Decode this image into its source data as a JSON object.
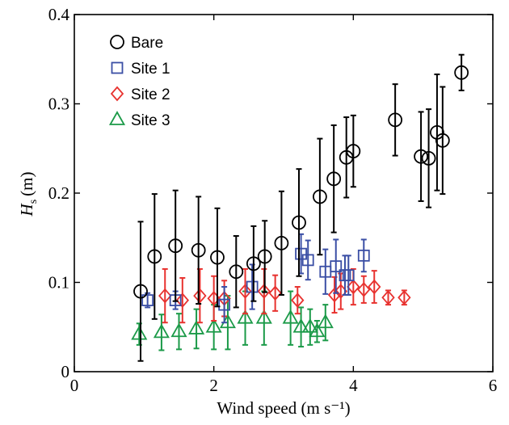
{
  "chart_data": {
    "type": "scatter",
    "xlabel": "Wind speed (m s⁻¹)",
    "ylabel": {
      "var": "H",
      "sub": "s",
      "unit": "(m)"
    },
    "xlim": [
      0,
      6
    ],
    "ylim": [
      0,
      0.4
    ],
    "xticks": [
      {
        "value": 0,
        "label": "0"
      },
      {
        "value": 2,
        "label": "2"
      },
      {
        "value": 4,
        "label": "4"
      },
      {
        "value": 6,
        "label": "6"
      }
    ],
    "yticks": [
      {
        "value": 0,
        "label": "0"
      },
      {
        "value": 0.1,
        "label": "0.1"
      },
      {
        "value": 0.2,
        "label": "0.2"
      },
      {
        "value": 0.3,
        "label": "0.3"
      },
      {
        "value": 0.4,
        "label": "0.4"
      }
    ],
    "grid": false,
    "legend_position": "top-left",
    "series": [
      {
        "name": "Bare",
        "marker": "circle",
        "color": "#000000",
        "x": [
          0.95,
          1.15,
          1.45,
          1.78,
          2.05,
          2.32,
          2.57,
          2.73,
          2.97,
          3.22,
          3.52,
          3.72,
          3.9,
          4.0,
          4.6,
          4.97,
          5.08,
          5.2,
          5.28,
          5.55
        ],
        "y": [
          0.09,
          0.129,
          0.141,
          0.136,
          0.128,
          0.112,
          0.121,
          0.129,
          0.144,
          0.167,
          0.196,
          0.216,
          0.24,
          0.247,
          0.282,
          0.241,
          0.239,
          0.268,
          0.259,
          0.335
        ],
        "err": [
          0.078,
          0.07,
          0.062,
          0.06,
          0.055,
          0.04,
          0.042,
          0.04,
          0.058,
          0.06,
          0.065,
          0.06,
          0.045,
          0.04,
          0.04,
          0.05,
          0.055,
          0.065,
          0.06,
          0.02
        ]
      },
      {
        "name": "Site 1",
        "marker": "square",
        "color": "#3b4fa5",
        "x": [
          1.05,
          1.45,
          2.15,
          2.55,
          3.25,
          3.35,
          3.6,
          3.75,
          3.88,
          3.93,
          4.15
        ],
        "y": [
          0.08,
          0.08,
          0.075,
          0.095,
          0.132,
          0.125,
          0.112,
          0.118,
          0.108,
          0.108,
          0.13
        ],
        "err": [
          0.008,
          0.01,
          0.02,
          0.025,
          0.022,
          0.022,
          0.025,
          0.03,
          0.022,
          0.022,
          0.018
        ]
      },
      {
        "name": "Site 2",
        "marker": "diamond",
        "color": "#e8322f",
        "x": [
          1.3,
          1.55,
          1.8,
          2.0,
          2.15,
          2.45,
          2.72,
          2.88,
          3.2,
          3.73,
          3.82,
          4.0,
          4.15,
          4.3,
          4.5,
          4.73
        ],
        "y": [
          0.085,
          0.08,
          0.085,
          0.082,
          0.082,
          0.09,
          0.09,
          0.088,
          0.08,
          0.086,
          0.09,
          0.095,
          0.092,
          0.095,
          0.083,
          0.083
        ],
        "err": [
          0.03,
          0.025,
          0.03,
          0.025,
          0.02,
          0.025,
          0.025,
          0.02,
          0.015,
          0.02,
          0.02,
          0.02,
          0.015,
          0.018,
          0.008,
          0.008
        ]
      },
      {
        "name": "Site 3",
        "marker": "triangle",
        "color": "#1b9a48",
        "x": [
          0.93,
          1.25,
          1.5,
          1.75,
          2.0,
          2.2,
          2.45,
          2.72,
          3.1,
          3.25,
          3.38,
          3.48,
          3.6
        ],
        "y": [
          0.042,
          0.044,
          0.045,
          0.048,
          0.05,
          0.055,
          0.06,
          0.06,
          0.06,
          0.05,
          0.05,
          0.045,
          0.055
        ],
        "err": [
          0.012,
          0.02,
          0.02,
          0.022,
          0.025,
          0.03,
          0.03,
          0.03,
          0.03,
          0.022,
          0.02,
          0.012,
          0.02
        ]
      }
    ]
  }
}
